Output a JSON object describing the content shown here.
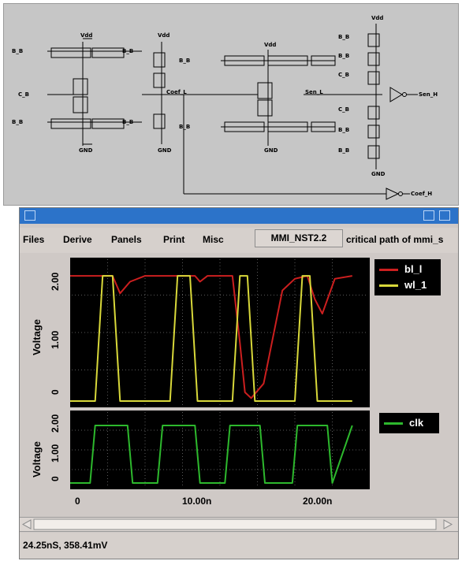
{
  "schematic": {
    "vdd_label": "Vdd",
    "gnd_label": "GND",
    "bitbar_input": "B_B",
    "bit_input": "B_B",
    "cell_input": "C_B",
    "node_coef": "Coef_L",
    "node_sen": "Sen_L",
    "out_sen": "Sen_H",
    "out_coef": "Coef_H"
  },
  "window": {
    "title": ""
  },
  "menu": {
    "items": [
      "Files",
      "Derive",
      "Panels",
      "Print",
      "Misc"
    ],
    "cell": "MMI_NST2.2",
    "path_title": "critical path of mmi_s"
  },
  "panels": {
    "top": {
      "ylabel": "Voltage",
      "yticks": [
        "2.00",
        "1.00",
        "0"
      ]
    },
    "bottom": {
      "ylabel": "Voltage",
      "yticks": [
        "2.00",
        "1.00",
        "0"
      ]
    },
    "xticks": [
      "0",
      "10.00n",
      "20.00n"
    ]
  },
  "legend": {
    "top": [
      {
        "name": "bl_l",
        "color": "#cc1f1f"
      },
      {
        "name": "wl_1",
        "color": "#d8d83a"
      }
    ],
    "bottom": [
      {
        "name": "clk",
        "color": "#2db82d"
      }
    ]
  },
  "colors": {
    "titlebar": "#2c73c9",
    "plot_bg": "#000000",
    "grid": "#5a5a5a",
    "window_bg": "#cfc9c6"
  },
  "status": "24.25nS, 358.41mV",
  "chart_data": [
    {
      "type": "line",
      "title": "",
      "xlabel": "",
      "ylabel": "Voltage",
      "xlim": [
        "0",
        "24n"
      ],
      "ylim": [
        0,
        2.3
      ],
      "grid": true,
      "legend": "right",
      "series": [
        {
          "name": "bl_l",
          "x": [
            "0",
            "2.8n",
            "3.4n",
            "4.0n",
            "4.8n",
            "6.0n",
            "9.0n",
            "10.0n",
            "10.4n",
            "11.0n",
            "13.0n",
            "13.6n",
            "14.0n",
            "14.5n",
            "15.5n",
            "17.0n",
            "18.0n",
            "19.0n",
            "19.6n",
            "20.2n",
            "21.2n",
            "22.6n"
          ],
          "y": [
            2.15,
            2.15,
            2.15,
            1.85,
            2.05,
            2.15,
            2.15,
            2.15,
            2.05,
            2.15,
            2.15,
            1.0,
            0.15,
            0.05,
            0.3,
            1.9,
            2.1,
            2.15,
            1.75,
            1.5,
            2.1,
            2.15
          ]
        },
        {
          "name": "wl_1",
          "x": [
            "0",
            "2.0n",
            "2.6n",
            "3.4n",
            "4.0n",
            "4.6n",
            "8.0n",
            "8.6n",
            "9.6n",
            "10.2n",
            "10.8n",
            "13.0n",
            "13.6n",
            "14.2n",
            "14.8n",
            "18.0n",
            "18.6n",
            "19.2n",
            "19.8n",
            "20.4n",
            "22.6n"
          ],
          "y": [
            0,
            0,
            2.15,
            2.15,
            0,
            0,
            0,
            2.15,
            2.15,
            0,
            0,
            0,
            2.15,
            2.15,
            0,
            0,
            2.15,
            2.15,
            0,
            0,
            0
          ]
        }
      ]
    },
    {
      "type": "line",
      "title": "",
      "xlabel": "",
      "ylabel": "Voltage",
      "xlim": [
        "0",
        "24n"
      ],
      "ylim": [
        0,
        2.3
      ],
      "grid": true,
      "legend": "right",
      "series": [
        {
          "name": "clk",
          "x": [
            "0",
            "1.6n",
            "2.0n",
            "4.6n",
            "5.0n",
            "7.0n",
            "7.4n",
            "10.0n",
            "10.4n",
            "12.4n",
            "12.8n",
            "15.2n",
            "15.6n",
            "17.8n",
            "18.2n",
            "20.6n",
            "21.0n",
            "22.6n"
          ],
          "y": [
            0,
            0,
            2.1,
            2.1,
            0,
            0,
            2.1,
            2.1,
            0,
            0,
            2.1,
            2.1,
            0,
            0,
            2.1,
            2.1,
            0,
            2.1
          ]
        }
      ]
    }
  ]
}
